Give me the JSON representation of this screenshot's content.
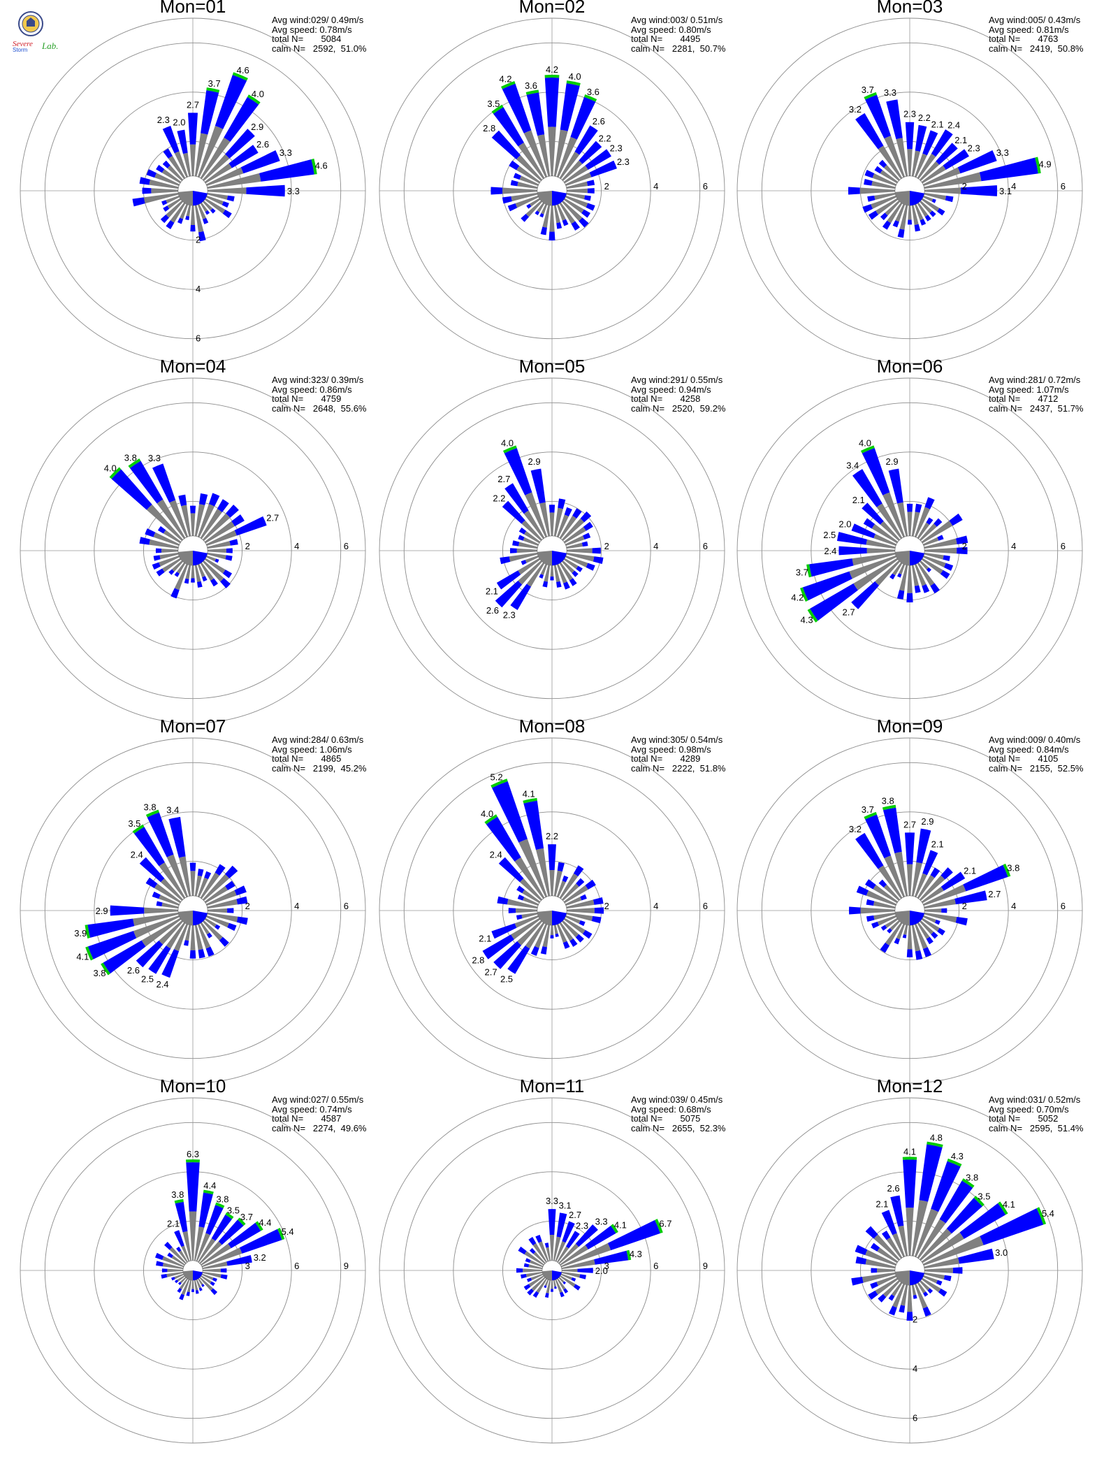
{
  "logo": {
    "line1": "Severe",
    "line2": "Storm",
    "line3": "Lab."
  },
  "colors": {
    "low": "#808080",
    "mid": "#0000ff",
    "high": "#00cc00",
    "ring": "#8c8c8c"
  },
  "chart_data": [
    {
      "type": "wind-rose",
      "title": "Mon=01",
      "stats": {
        "avg_wind": "Avg wind:029/ 0.49m/s",
        "avg_speed": "Avg speed: 0.78m/s",
        "total": "total N=       5084",
        "calm": "calm N=   2592,  51.0%"
      },
      "ring_values": [
        2,
        4,
        6
      ],
      "ring_label_axis": "down",
      "rmax": 7,
      "labeled_bars": [
        [
          337.5,
          2.3
        ],
        [
          349,
          2.0
        ],
        [
          360,
          2.7
        ],
        [
          11,
          3.7
        ],
        [
          22,
          4.6
        ],
        [
          34,
          4.0
        ],
        [
          45,
          2.9
        ],
        [
          56,
          2.6
        ],
        [
          67,
          3.3
        ],
        [
          79,
          4.6
        ],
        [
          90,
          3.3
        ]
      ]
    },
    {
      "type": "wind-rose",
      "title": "Mon=02",
      "stats": {
        "avg_wind": "Avg wind:003/ 0.51m/s",
        "avg_speed": "Avg speed: 0.80m/s",
        "total": "total N=       4495",
        "calm": "calm N=   2281,  50.7%"
      },
      "ring_values": [
        2,
        4,
        6
      ],
      "ring_label_axis": "right",
      "rmax": 7,
      "labeled_bars": [
        [
          315,
          2.8
        ],
        [
          326,
          3.5
        ],
        [
          337.5,
          4.2
        ],
        [
          349,
          3.6
        ],
        [
          360,
          4.2
        ],
        [
          11,
          4.0
        ],
        [
          22,
          3.6
        ],
        [
          34,
          2.6
        ],
        [
          45,
          2.2
        ],
        [
          56,
          2.3
        ],
        [
          67,
          2.3
        ]
      ]
    },
    {
      "type": "wind-rose",
      "title": "Mon=03",
      "stats": {
        "avg_wind": "Avg wind:005/ 0.43m/s",
        "avg_speed": "Avg speed: 0.81m/s",
        "total": "total N=       4763",
        "calm": "calm N=   2419,  50.8%"
      },
      "ring_values": [
        2,
        4,
        6
      ],
      "ring_label_axis": "right",
      "rmax": 7,
      "labeled_bars": [
        [
          326,
          3.2
        ],
        [
          337.5,
          3.7
        ],
        [
          349,
          3.3
        ],
        [
          360,
          2.3
        ],
        [
          11,
          2.2
        ],
        [
          22,
          2.1
        ],
        [
          34,
          2.4
        ],
        [
          45,
          2.1
        ],
        [
          56,
          2.3
        ],
        [
          67,
          3.3
        ],
        [
          79,
          4.9
        ],
        [
          90,
          3.1
        ]
      ]
    },
    {
      "type": "wind-rose",
      "title": "Mon=04",
      "stats": {
        "avg_wind": "Avg wind:323/ 0.39m/s",
        "avg_speed": "Avg speed: 0.86m/s",
        "total": "total N=       4759",
        "calm": "calm N=   2648,  55.6%"
      },
      "ring_values": [
        2,
        4,
        6
      ],
      "ring_label_axis": "right",
      "rmax": 7,
      "labeled_bars": [
        [
          315,
          4.0
        ],
        [
          326,
          3.8
        ],
        [
          337.5,
          3.3
        ],
        [
          67,
          2.7
        ]
      ]
    },
    {
      "type": "wind-rose",
      "title": "Mon=05",
      "stats": {
        "avg_wind": "Avg wind:291/ 0.55m/s",
        "avg_speed": "Avg speed: 0.94m/s",
        "total": "total N=       4258",
        "calm": "calm N=   2520,  59.2%"
      },
      "ring_values": [
        2,
        4,
        6
      ],
      "ring_label_axis": "right",
      "rmax": 7,
      "labeled_bars": [
        [
          315,
          2.2
        ],
        [
          326,
          2.7
        ],
        [
          337.5,
          4.0
        ],
        [
          349,
          2.9
        ],
        [
          236,
          2.1
        ],
        [
          225,
          2.6
        ],
        [
          214,
          2.3
        ]
      ]
    },
    {
      "type": "wind-rose",
      "title": "Mon=06",
      "stats": {
        "avg_wind": "Avg wind:281/ 0.72m/s",
        "avg_speed": "Avg speed: 1.07m/s",
        "total": "total N=       4712",
        "calm": "calm N=   2437,  51.7%"
      },
      "ring_values": [
        2,
        4,
        6
      ],
      "ring_label_axis": "right",
      "rmax": 7,
      "labeled_bars": [
        [
          315,
          2.1
        ],
        [
          326,
          3.4
        ],
        [
          337.5,
          4.0
        ],
        [
          349,
          2.9
        ],
        [
          292,
          2.0
        ],
        [
          281,
          2.5
        ],
        [
          270,
          2.4
        ],
        [
          259,
          3.7
        ],
        [
          247,
          4.2
        ],
        [
          236,
          4.3
        ],
        [
          225,
          2.7
        ]
      ]
    },
    {
      "type": "wind-rose",
      "title": "Mon=07",
      "stats": {
        "avg_wind": "Avg wind:284/ 0.63m/s",
        "avg_speed": "Avg speed: 1.06m/s",
        "total": "total N=       4865",
        "calm": "calm N=   2199,  45.2%"
      },
      "ring_values": [
        2,
        4,
        6
      ],
      "ring_label_axis": "right",
      "rmax": 7,
      "labeled_bars": [
        [
          326,
          3.5
        ],
        [
          337.5,
          3.8
        ],
        [
          349,
          3.4
        ],
        [
          315,
          2.4
        ],
        [
          270,
          2.9
        ],
        [
          259,
          3.9
        ],
        [
          247,
          4.1
        ],
        [
          236,
          3.8
        ],
        [
          225,
          2.6
        ],
        [
          214,
          2.5
        ],
        [
          202,
          2.4
        ]
      ]
    },
    {
      "type": "wind-rose",
      "title": "Mon=08",
      "stats": {
        "avg_wind": "Avg wind:305/ 0.54m/s",
        "avg_speed": "Avg speed: 0.98m/s",
        "total": "total N=       4289",
        "calm": "calm N=   2222,  51.8%"
      },
      "ring_values": [
        2,
        4,
        6
      ],
      "ring_label_axis": "right",
      "rmax": 7,
      "labeled_bars": [
        [
          315,
          2.4
        ],
        [
          326,
          4.0
        ],
        [
          337.5,
          5.2
        ],
        [
          349,
          4.1
        ],
        [
          360,
          2.2
        ],
        [
          247,
          2.1
        ],
        [
          236,
          2.8
        ],
        [
          225,
          2.7
        ],
        [
          214,
          2.5
        ]
      ]
    },
    {
      "type": "wind-rose",
      "title": "Mon=09",
      "stats": {
        "avg_wind": "Avg wind:009/ 0.40m/s",
        "avg_speed": "Avg speed: 0.84m/s",
        "total": "total N=       4105",
        "calm": "calm N=   2155,  52.5%"
      },
      "ring_values": [
        2,
        4,
        6
      ],
      "ring_label_axis": "right",
      "rmax": 7,
      "labeled_bars": [
        [
          326,
          3.2
        ],
        [
          337.5,
          3.7
        ],
        [
          349,
          3.8
        ],
        [
          360,
          2.7
        ],
        [
          11,
          2.9
        ],
        [
          22,
          2.1
        ],
        [
          56,
          2.1
        ],
        [
          67,
          3.8
        ],
        [
          79,
          2.7
        ]
      ]
    },
    {
      "type": "wind-rose",
      "title": "Mon=10",
      "stats": {
        "avg_wind": "Avg wind:027/ 0.55m/s",
        "avg_speed": "Avg speed: 0.74m/s",
        "total": "total N=       4587",
        "calm": "calm N=   2274,  49.6%"
      },
      "ring_values": [
        3,
        6,
        9
      ],
      "ring_label_axis": "right",
      "rmax": 10.5,
      "labeled_bars": [
        [
          337.5,
          2.1
        ],
        [
          349,
          3.8
        ],
        [
          360,
          6.3
        ],
        [
          11,
          4.4
        ],
        [
          22,
          3.8
        ],
        [
          34,
          3.5
        ],
        [
          45,
          3.7
        ],
        [
          56,
          4.4
        ],
        [
          67,
          5.4
        ],
        [
          79,
          3.2
        ]
      ]
    },
    {
      "type": "wind-rose",
      "title": "Mon=11",
      "stats": {
        "avg_wind": "Avg wind:039/ 0.45m/s",
        "avg_speed": "Avg speed: 0.68m/s",
        "total": "total N=       5075",
        "calm": "calm N=   2655,  52.3%"
      },
      "ring_values": [
        3,
        6,
        9
      ],
      "ring_label_axis": "right",
      "rmax": 10.5,
      "labeled_bars": [
        [
          360,
          3.3
        ],
        [
          11,
          3.1
        ],
        [
          22,
          2.7
        ],
        [
          34,
          2.3
        ],
        [
          45,
          3.3
        ],
        [
          56,
          4.1
        ],
        [
          67,
          6.7
        ],
        [
          79,
          4.3
        ],
        [
          90,
          2.0
        ]
      ]
    },
    {
      "type": "wind-rose",
      "title": "Mon=12",
      "stats": {
        "avg_wind": "Avg wind:031/ 0.52m/s",
        "avg_speed": "Avg speed: 0.70m/s",
        "total": "total N=       5052",
        "calm": "calm N=   2595,  51.4%"
      },
      "ring_values": [
        2,
        4,
        6
      ],
      "ring_label_axis": "down",
      "rmax": 7,
      "labeled_bars": [
        [
          337.5,
          2.1
        ],
        [
          349,
          2.6
        ],
        [
          360,
          4.1
        ],
        [
          11,
          4.8
        ],
        [
          22,
          4.3
        ],
        [
          34,
          3.8
        ],
        [
          45,
          3.5
        ],
        [
          56,
          4.1
        ],
        [
          67,
          5.4
        ],
        [
          79,
          3.0
        ]
      ]
    }
  ]
}
